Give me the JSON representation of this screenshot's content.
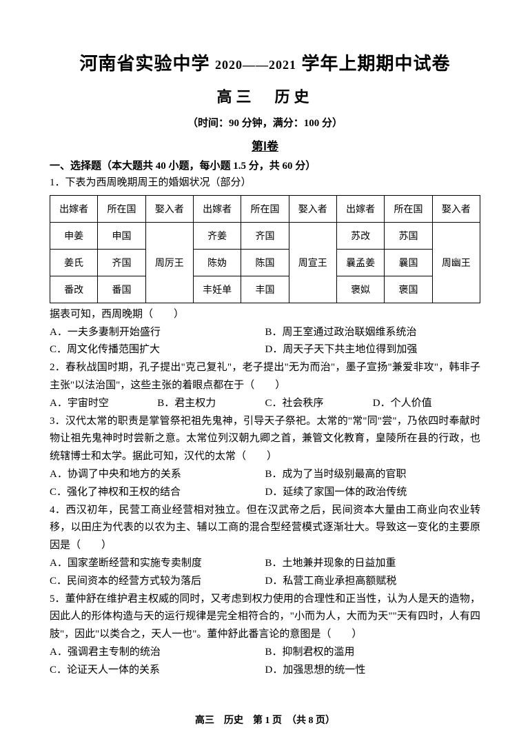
{
  "header": {
    "school": "河南省实验中学",
    "year_range": "2020——2021",
    "title_suffix": "学年上期期中试卷",
    "grade_subject": "高三　历史",
    "time_score": "（时间：90 分钟，满分：100 分）",
    "part": "第Ⅰ卷"
  },
  "section1": {
    "header": "一、选择题（本大题共 40 小题，每小题 1.5 分，共 60 分）"
  },
  "q1": {
    "stem": "1．下表为西周晚期周王的婚姻状况（部分）",
    "table": {
      "headers": [
        "出嫁者",
        "所在国",
        "娶入者",
        "出嫁者",
        "所在国",
        "娶入者",
        "出嫁者",
        "所在国",
        "娶入者"
      ],
      "row1": [
        "申姜",
        "申国",
        "",
        "齐姜",
        "齐国",
        "",
        "苏改",
        "苏国",
        ""
      ],
      "row2": [
        "姜氏",
        "齐国",
        "周厉王",
        "陈妫",
        "陈国",
        "周宣王",
        "曩孟姜",
        "曩国",
        "周幽王"
      ],
      "row3": [
        "番改",
        "番国",
        "",
        "丰妊单",
        "丰国",
        "",
        "褒姒",
        "褒国",
        ""
      ]
    },
    "tail": "据表可知，西周晚期（　　）",
    "A": "A．一夫多妻制开始盛行",
    "B": "B．周王室通过政治联姻维系统治",
    "C": "C．周文化传播范围扩大",
    "D": "D．周天子天下共主地位得到加强"
  },
  "q2": {
    "stem": "2．春秋战国时期，孔子提出\"克己复礼\"，老子提出\"无为而治\"，墨子宣扬\"兼爱非攻\"，韩非子主张\"以法治国\"，这些主张的着眼点都在于（　　）",
    "A": "A．宇宙时空",
    "B": "B．君主权力",
    "C": "C．社会秩序",
    "D": "D．个人价值"
  },
  "q3": {
    "stem": "3．汉代太常的职责是掌管祭祀祖先鬼神，引导天子祭祀。太常的\"常\"同\"尝\"，乃依四时奉献时物让祖先鬼神时时尝新之意。太常位列汉朝九卿之首，兼管文化教育，皇陵所在县的行政，也统辖博士和太学。据此可知，汉代的太常（　　）",
    "A": "A．协调了中央和地方的关系",
    "B": "B．成为了当时级别最高的官职",
    "C": "C．强化了神权和王权的结合",
    "D": "D．延续了家国一体的政治传统"
  },
  "q4": {
    "stem": "4．西汉初年，民营工商业经营相对独立。但在汉武帝之后，民间资本大量由工商业向农业转移，以田庄为代表的以农为主、辅以工商的混合型经营模式逐渐壮大。导致这一变化的主要原因是（　　）",
    "A": "A．国家垄断经营和实施专卖制度",
    "B": "B．土地兼并现象的日益加重",
    "C": "C．民间资本的经营方式较为落后",
    "D": "D．私营工商业承担高额赋税"
  },
  "q5": {
    "stem": "5．董仲舒在维护君主权威的同时，又考虑到权力使用的合理性和正当性，认为人是天的造物，因此人的形体构造与天的运行规律是完全相符合的，\"小而为人，大而为天\"\"天有四时，人有四肢\"，因此\"以类合之，天人一也\"。董仲舒此番言论的意图是（　　）",
    "A": "A．强调君主专制的统治",
    "B": "B．抑制君权的滥用",
    "C": "C．论证天人一体的关系",
    "D": "D．加强思想的统一性"
  },
  "footer": {
    "text": "高三　历史　第 1 页　（共 8 页）"
  }
}
